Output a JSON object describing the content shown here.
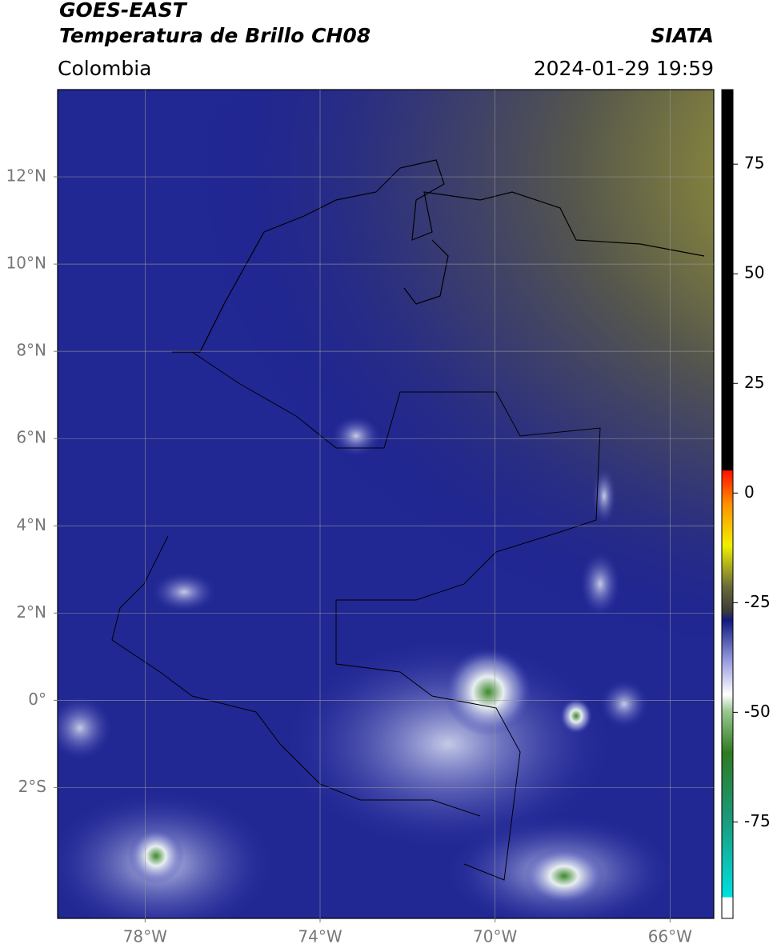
{
  "chart_data": {
    "type": "map",
    "title": "GOES-EAST",
    "subtitle": "Temperatura de Brillo CH08",
    "source": "SIATA",
    "region": "Colombia",
    "datetime": "2024-01-29 19:59",
    "xlim": [
      -80,
      -65
    ],
    "ylim": [
      -5,
      14
    ],
    "xticks": [
      {
        "value": -78,
        "label": "78°W"
      },
      {
        "value": -74,
        "label": "74°W"
      },
      {
        "value": -70,
        "label": "70°W"
      },
      {
        "value": -66,
        "label": "66°W"
      }
    ],
    "yticks": [
      {
        "value": 12,
        "label": "12°N"
      },
      {
        "value": 10,
        "label": "10°N"
      },
      {
        "value": 8,
        "label": "8°N"
      },
      {
        "value": 6,
        "label": "6°N"
      },
      {
        "value": 4,
        "label": "4°N"
      },
      {
        "value": 2,
        "label": "2°N"
      },
      {
        "value": 0,
        "label": "0°"
      },
      {
        "value": -2,
        "label": "2°S"
      }
    ],
    "grid": true,
    "colorbar": {
      "lim": [
        -97,
        92
      ],
      "ticks": [
        75,
        50,
        25,
        0,
        -25,
        -50,
        -75
      ]
    }
  }
}
